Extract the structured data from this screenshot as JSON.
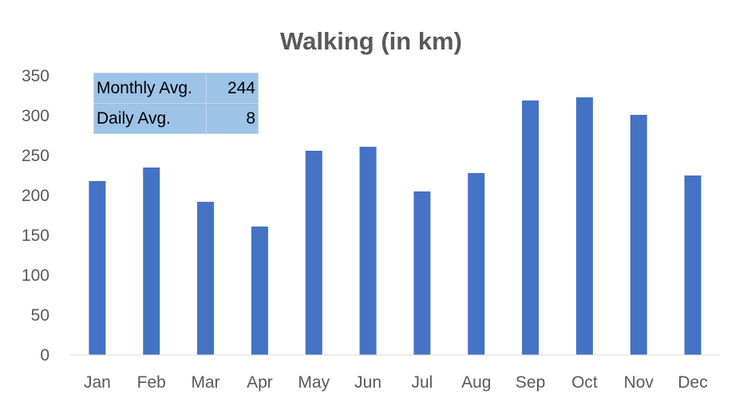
{
  "chart_data": {
    "type": "bar",
    "title": "Walking (in km)",
    "categories": [
      "Jan",
      "Feb",
      "Mar",
      "Apr",
      "May",
      "Jun",
      "Jul",
      "Aug",
      "Sep",
      "Oct",
      "Nov",
      "Dec"
    ],
    "values": [
      218,
      235,
      192,
      161,
      256,
      261,
      205,
      228,
      319,
      323,
      301,
      225
    ],
    "ylim": [
      0,
      350
    ],
    "yticks": [
      0,
      50,
      100,
      150,
      200,
      250,
      300,
      350
    ],
    "xlabel": "",
    "ylabel": "",
    "grid": false,
    "colors": {
      "bar": "#4472c4",
      "text": "#595959",
      "table_fill": "#9dc3e6"
    }
  },
  "summary_table": {
    "rows": [
      {
        "label": "Monthly Avg.",
        "value": "244"
      },
      {
        "label": "Daily Avg.",
        "value": "8"
      }
    ]
  }
}
